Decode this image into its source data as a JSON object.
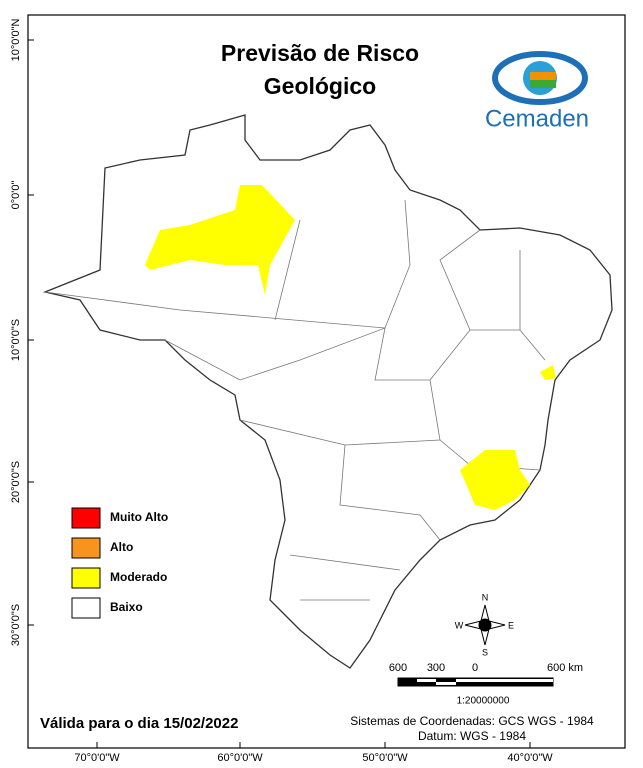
{
  "header": {
    "title_line_1": "Previsão de Risco",
    "title_line_2": "Geológico",
    "logo_text": "Cemaden"
  },
  "latitude_labels": [
    "10°0'0\"N",
    "0°0'0\"",
    "10°0'0\"S",
    "20°0'0\"S",
    "30°0'0\"S"
  ],
  "longitude_labels": [
    "70°0'0\"W",
    "60°0'0\"W",
    "50°0'0\"W",
    "40°0'0\"W"
  ],
  "legend": [
    {
      "label": "Muito Alto",
      "color": "#ff0000"
    },
    {
      "label": "Alto",
      "color": "#f7941d"
    },
    {
      "label": "Moderado",
      "color": "#ffff00"
    },
    {
      "label": "Baixo",
      "color": "#ffffff"
    }
  ],
  "compass": {
    "north": "N",
    "south": "S",
    "east": "E",
    "west": "W"
  },
  "scale_bar": {
    "labels": [
      "600",
      "300",
      "0",
      "600 km"
    ],
    "ratio": "1:20000000"
  },
  "footer": {
    "validity": "Válida para o dia 15/02/2022",
    "coordinate_system": "Sistemas de Coordenadas: GCS WGS - 1984",
    "datum": "Datum: WGS - 1984"
  }
}
